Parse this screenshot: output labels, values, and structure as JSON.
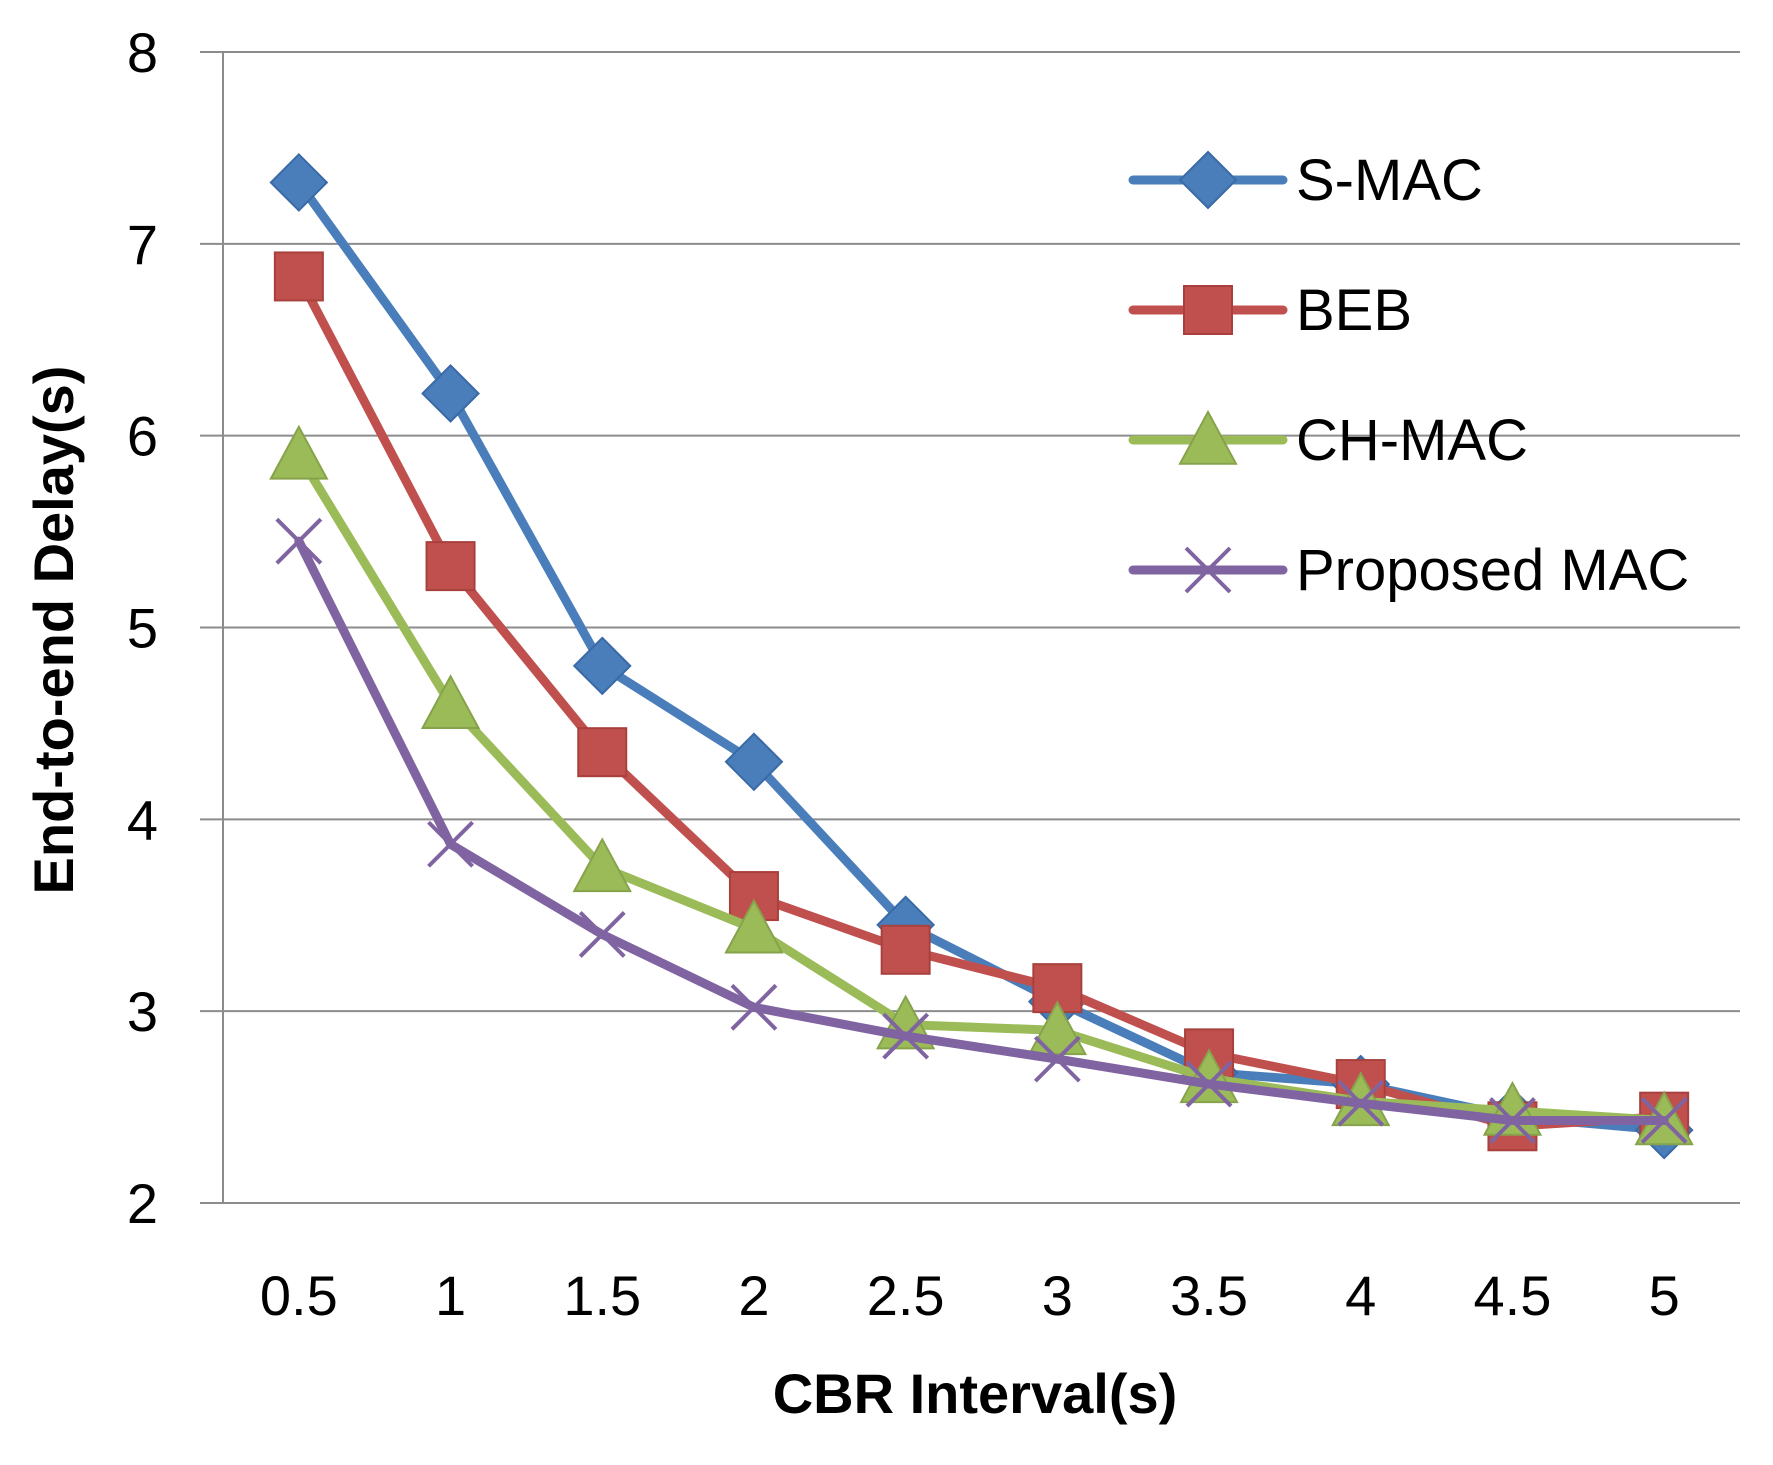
{
  "chart_data": {
    "type": "line",
    "title": "",
    "xlabel": "CBR Interval(s)",
    "ylabel": "End-to-end Delay(s)",
    "categories": [
      "0.5",
      "1",
      "1.5",
      "2",
      "2.5",
      "3",
      "3.5",
      "4",
      "4.5",
      "5"
    ],
    "ylim": [
      2,
      8
    ],
    "yticks": [
      "2",
      "3",
      "4",
      "5",
      "6",
      "7",
      "8"
    ],
    "grid": true,
    "legend_position": "top-right",
    "series": [
      {
        "name": "S-MAC",
        "color": "#4a7ebb",
        "marker": "diamond",
        "values": [
          7.32,
          6.22,
          4.8,
          4.3,
          3.45,
          3.05,
          2.68,
          2.62,
          2.45,
          2.38
        ]
      },
      {
        "name": "BEB",
        "color": "#c0504d",
        "marker": "square",
        "values": [
          6.83,
          5.32,
          4.35,
          3.6,
          3.32,
          3.12,
          2.78,
          2.62,
          2.4,
          2.45
        ]
      },
      {
        "name": "CH-MAC",
        "color": "#9bbb59",
        "marker": "triangle",
        "values": [
          5.9,
          4.6,
          3.75,
          3.43,
          2.93,
          2.9,
          2.65,
          2.53,
          2.48,
          2.43
        ]
      },
      {
        "name": "Proposed MAC",
        "color": "#8064a2",
        "marker": "x",
        "values": [
          5.45,
          3.87,
          3.4,
          3.02,
          2.87,
          2.75,
          2.62,
          2.52,
          2.43,
          2.43
        ]
      }
    ]
  }
}
